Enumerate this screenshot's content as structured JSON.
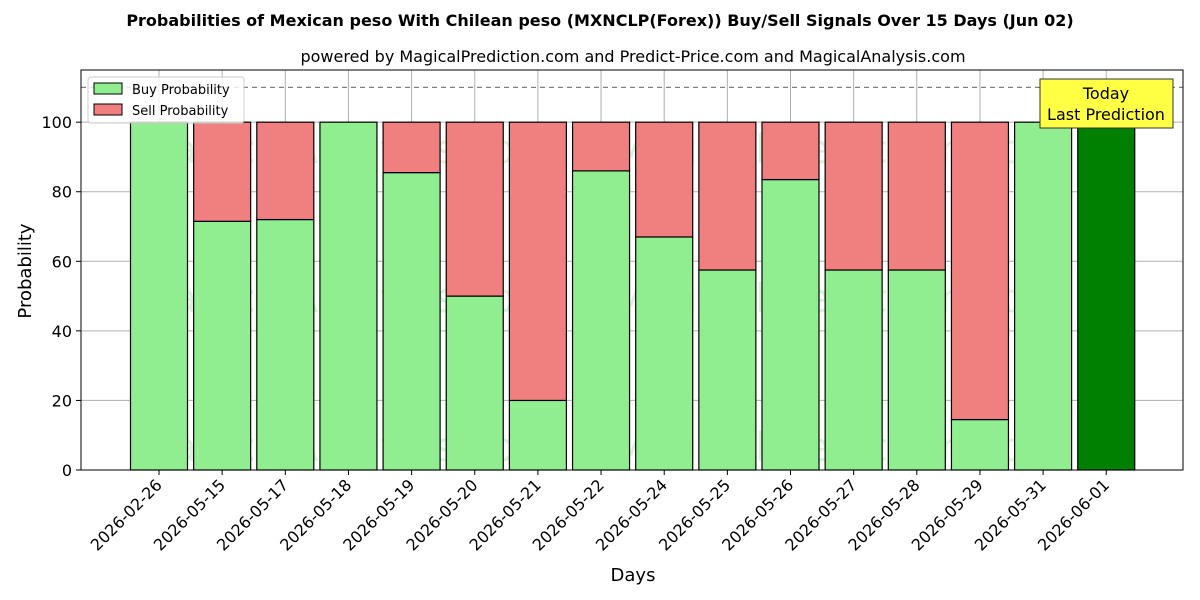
{
  "chart_data": {
    "type": "bar",
    "stacked": true,
    "title": "Probabilities of Mexican peso With Chilean peso (MXNCLP(Forex)) Buy/Sell Signals Over 15 Days (Jun 02)",
    "subtitle": "powered by MagicalPrediction.com and Predict-Price.com and MagicalAnalysis.com",
    "xlabel": "Days",
    "ylabel": "Probability",
    "ylim": [
      0,
      115
    ],
    "yticks": [
      0,
      20,
      40,
      60,
      80,
      100
    ],
    "reference_line": 110,
    "grid": true,
    "legend_position": "top-left",
    "categories": [
      "2026-02-26",
      "2026-05-15",
      "2026-05-17",
      "2026-05-18",
      "2026-05-19",
      "2026-05-20",
      "2026-05-21",
      "2026-05-22",
      "2026-05-24",
      "2026-05-25",
      "2026-05-26",
      "2026-05-27",
      "2026-05-28",
      "2026-05-29",
      "2026-05-31",
      "2026-06-01"
    ],
    "series": [
      {
        "name": "Buy Probability",
        "color": "#90ee90",
        "values": [
          100,
          71.5,
          72,
          100,
          85.5,
          50,
          20,
          86,
          67,
          57.5,
          83.5,
          57.5,
          57.5,
          14.5,
          100,
          100
        ]
      },
      {
        "name": "Sell Probability",
        "color": "#f08080",
        "values": [
          0,
          28.5,
          28,
          0,
          14.5,
          50,
          80,
          14,
          33,
          42.5,
          16.5,
          42.5,
          42.5,
          85.5,
          0,
          0
        ]
      }
    ],
    "highlight": {
      "index": 15,
      "color": "#008000"
    },
    "annotation": {
      "line1": "Today",
      "line2": "Last Prediction"
    },
    "watermarks": [
      "MagicalAnalysis.com",
      "MagicalPrediction.com"
    ]
  }
}
